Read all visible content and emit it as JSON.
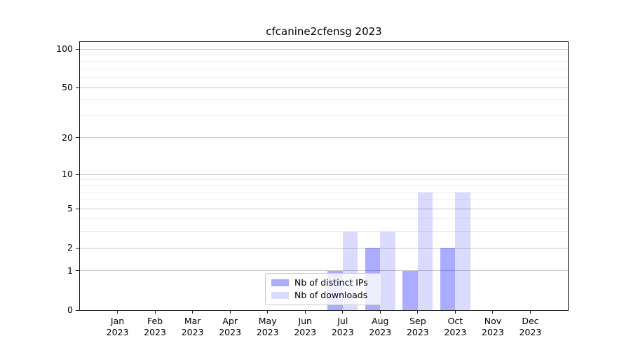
{
  "chart_data": {
    "type": "bar",
    "title": "cfcanine2cfensg 2023",
    "categories": [
      "Jan",
      "Feb",
      "Mar",
      "Apr",
      "May",
      "Jun",
      "Jul",
      "Aug",
      "Sep",
      "Oct",
      "Nov",
      "Dec"
    ],
    "year": "2023",
    "series": [
      {
        "name": "Nb of distinct IPs",
        "color": "rgba(0,0,255,0.33)",
        "values": [
          0,
          0,
          0,
          0,
          0,
          0,
          1,
          2,
          1,
          2,
          0,
          0
        ]
      },
      {
        "name": "Nb of downloads",
        "color": "rgba(0,0,255,0.14)",
        "values": [
          0,
          0,
          0,
          0,
          0,
          0,
          3,
          3,
          7,
          7,
          0,
          0
        ]
      }
    ],
    "xlabel": "",
    "ylabel": "",
    "yscale": "log1p",
    "ylim": [
      0,
      100
    ],
    "yticks": [
      0,
      1,
      2,
      5,
      10,
      20,
      50,
      100
    ],
    "minor_gridlines": [
      3,
      4,
      6,
      7,
      8,
      9,
      30,
      40,
      60,
      70,
      80,
      90
    ],
    "grid": true,
    "legend_position": "lower center"
  }
}
